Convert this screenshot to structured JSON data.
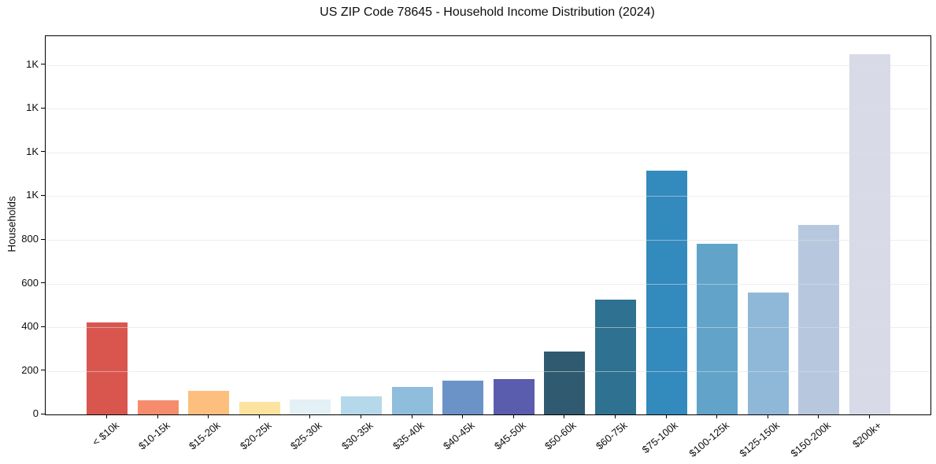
{
  "title": "US ZIP Code 78645 - Household Income Distribution (2024)",
  "chart_data": {
    "type": "bar",
    "title": "US ZIP Code 78645 - Household Income Distribution (2024)",
    "xlabel": "",
    "ylabel": "Households",
    "ylim": [
      0,
      1733
    ],
    "grid": true,
    "legend": "none",
    "categories": [
      "< $10k",
      "$10-15k",
      "$15-20k",
      "$20-25k",
      "$25-30k",
      "$30-35k",
      "$35-40k",
      "$40-45k",
      "$45-50k",
      "$50-60k",
      "$60-75k",
      "$75-100k",
      "$100-125k",
      "$125-150k",
      "$150-200k",
      "$200k+"
    ],
    "values": [
      420,
      64,
      108,
      58,
      68,
      83,
      126,
      155,
      162,
      287,
      528,
      1118,
      783,
      557,
      870,
      1652
    ],
    "bar_colors": [
      "#d9564f",
      "#f58d6d",
      "#fcbf7e",
      "#fce3a0",
      "#e3f0f5",
      "#b5d9ea",
      "#8fbedd",
      "#6b93c8",
      "#5a5dad",
      "#2f5a70",
      "#2e7191",
      "#338abd",
      "#61a3c9",
      "#8fb8d8",
      "#b7c8de",
      "#d8dae7"
    ],
    "y_ticks": [
      {
        "value": 0,
        "label": "0"
      },
      {
        "value": 200,
        "label": "200"
      },
      {
        "value": 400,
        "label": "400"
      },
      {
        "value": 600,
        "label": "600"
      },
      {
        "value": 800,
        "label": "800"
      },
      {
        "value": 1000,
        "label": "1K"
      },
      {
        "value": 1200,
        "label": "1K"
      },
      {
        "value": 1400,
        "label": "1K"
      },
      {
        "value": 1600,
        "label": "1K"
      }
    ]
  }
}
